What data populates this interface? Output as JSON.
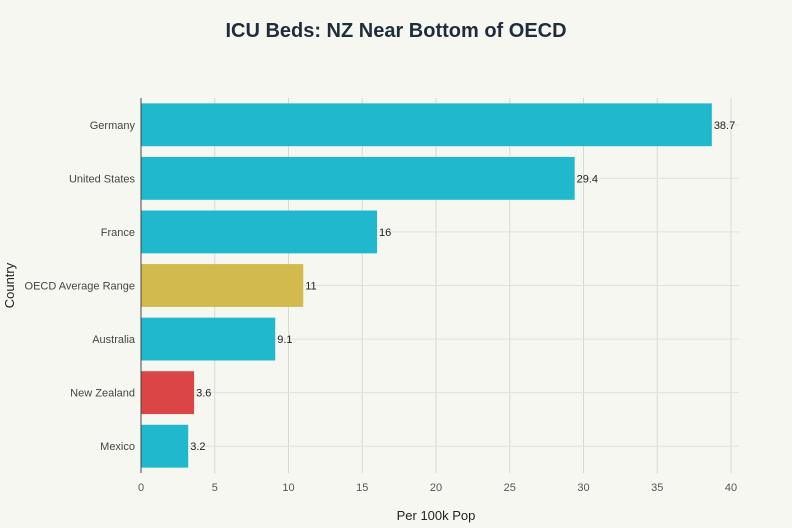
{
  "chart_data": {
    "type": "bar",
    "orientation": "horizontal",
    "title": "ICU Beds: NZ Near Bottom of OECD",
    "xlabel": "Per 100k Pop",
    "ylabel": "Country",
    "categories": [
      "Germany",
      "United States",
      "France",
      "OECD Average Range",
      "Australia",
      "New Zealand",
      "Mexico"
    ],
    "values": [
      38.7,
      29.4,
      16,
      11,
      9.1,
      3.6,
      3.2
    ],
    "value_labels": [
      "38.7",
      "29.4",
      "16",
      "11",
      "9.1",
      "3.6",
      "3.2"
    ],
    "colors": [
      "#1fb8cd",
      "#1fb8cd",
      "#1fb8cd",
      "#d2ba4c",
      "#1fb8cd",
      "#db4545",
      "#1fb8cd"
    ],
    "xlim": [
      0,
      40
    ],
    "xticks": [
      0,
      5,
      10,
      15,
      20,
      25,
      30,
      35,
      40
    ],
    "grid": true,
    "legend": "none"
  }
}
